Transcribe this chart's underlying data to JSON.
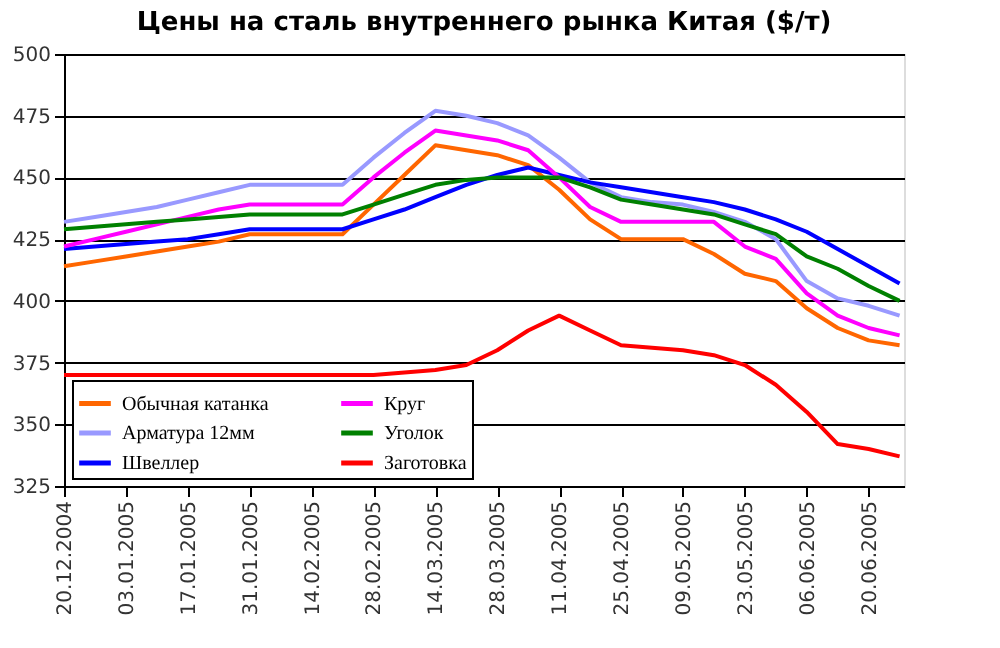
{
  "chart_data": {
    "type": "line",
    "title": "Цены на сталь внутреннего рынка Китая ($/т)",
    "x": [
      "2004-12-20",
      "2004-12-27",
      "2005-01-03",
      "2005-01-10",
      "2005-01-17",
      "2005-01-24",
      "2005-01-31",
      "2005-02-07",
      "2005-02-14",
      "2005-02-21",
      "2005-02-28",
      "2005-03-07",
      "2005-03-14",
      "2005-03-21",
      "2005-03-28",
      "2005-04-04",
      "2005-04-11",
      "2005-04-18",
      "2005-04-25",
      "2005-05-02",
      "2005-05-09",
      "2005-05-16",
      "2005-05-23",
      "2005-05-30",
      "2005-06-06",
      "2005-06-13",
      "2005-06-20",
      "2005-06-27"
    ],
    "series": [
      {
        "name": "Обычная катанка",
        "color": "#ff6600",
        "values": [
          414,
          416,
          418,
          420,
          422,
          424,
          427,
          427,
          427,
          427,
          439,
          451,
          463,
          461,
          459,
          455,
          445,
          433,
          425,
          425,
          425,
          419,
          411,
          408,
          397,
          389,
          384,
          382
        ]
      },
      {
        "name": "Арматура 12мм",
        "color": "#9999ff",
        "values": [
          432,
          434,
          436,
          438,
          441,
          444,
          447,
          447,
          447,
          447,
          458,
          468,
          477,
          475,
          472,
          467,
          458,
          448,
          442,
          440,
          439,
          436,
          432,
          425,
          408,
          401,
          398,
          394
        ]
      },
      {
        "name": "Швеллер",
        "color": "#0000ff",
        "values": [
          421,
          422,
          423,
          424,
          425,
          427,
          429,
          429,
          429,
          429,
          433,
          437,
          442,
          447,
          451,
          454,
          451,
          448,
          446,
          444,
          442,
          440,
          437,
          433,
          428,
          421,
          414,
          407
        ]
      },
      {
        "name": "Круг",
        "color": "#ff00ff",
        "values": [
          422,
          425,
          428,
          431,
          434,
          437,
          439,
          439,
          439,
          439,
          450,
          460,
          469,
          467,
          465,
          461,
          450,
          438,
          432,
          432,
          432,
          432,
          422,
          417,
          403,
          394,
          389,
          386
        ]
      },
      {
        "name": "Уголок",
        "color": "#008000",
        "values": [
          429,
          430,
          431,
          432,
          433,
          434,
          435,
          435,
          435,
          435,
          439,
          443,
          447,
          449,
          450,
          450,
          450,
          446,
          441,
          439,
          437,
          435,
          431,
          427,
          418,
          413,
          406,
          400
        ]
      },
      {
        "name": "Заготовка",
        "color": "#ff0000",
        "values": [
          370,
          370,
          370,
          370,
          370,
          370,
          370,
          370,
          370,
          370,
          370,
          371,
          372,
          374,
          380,
          388,
          394,
          388,
          382,
          381,
          380,
          378,
          374,
          366,
          355,
          342,
          340,
          337
        ]
      }
    ],
    "xlim": [
      "2004-12-20",
      "2005-06-28"
    ],
    "xticks": [
      {
        "value": "2004-12-20",
        "label": "20.12.2004"
      },
      {
        "value": "2005-01-03",
        "label": "03.01.2005"
      },
      {
        "value": "2005-01-17",
        "label": "17.01.2005"
      },
      {
        "value": "2005-01-31",
        "label": "31.01.2005"
      },
      {
        "value": "2005-02-14",
        "label": "14.02.2005"
      },
      {
        "value": "2005-02-28",
        "label": "28.02.2005"
      },
      {
        "value": "2005-03-14",
        "label": "14.03.2005"
      },
      {
        "value": "2005-03-28",
        "label": "28.03.2005"
      },
      {
        "value": "2005-04-11",
        "label": "11.04.2005"
      },
      {
        "value": "2005-04-25",
        "label": "25.04.2005"
      },
      {
        "value": "2005-05-09",
        "label": "09.05.2005"
      },
      {
        "value": "2005-05-23",
        "label": "23.05.2005"
      },
      {
        "value": "2005-06-06",
        "label": "06.06.2005"
      },
      {
        "value": "2005-06-20",
        "label": "20.06.2005"
      }
    ],
    "ylim": [
      325,
      500
    ],
    "yticks": [
      325,
      350,
      375,
      400,
      425,
      450,
      475,
      500
    ],
    "grid": "y",
    "legend": "bottom left",
    "marker": "none",
    "line_style": "solid"
  }
}
